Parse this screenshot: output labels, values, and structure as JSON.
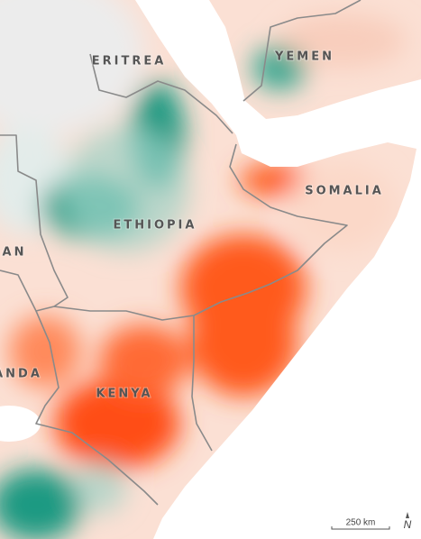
{
  "labels": [
    "ERITREA",
    "YEMEN",
    "ETHIOPIA",
    "SOMALIA",
    "AN",
    "ANDA",
    "KENYA"
  ],
  "scale_bar": "250 km",
  "north": "N"
}
